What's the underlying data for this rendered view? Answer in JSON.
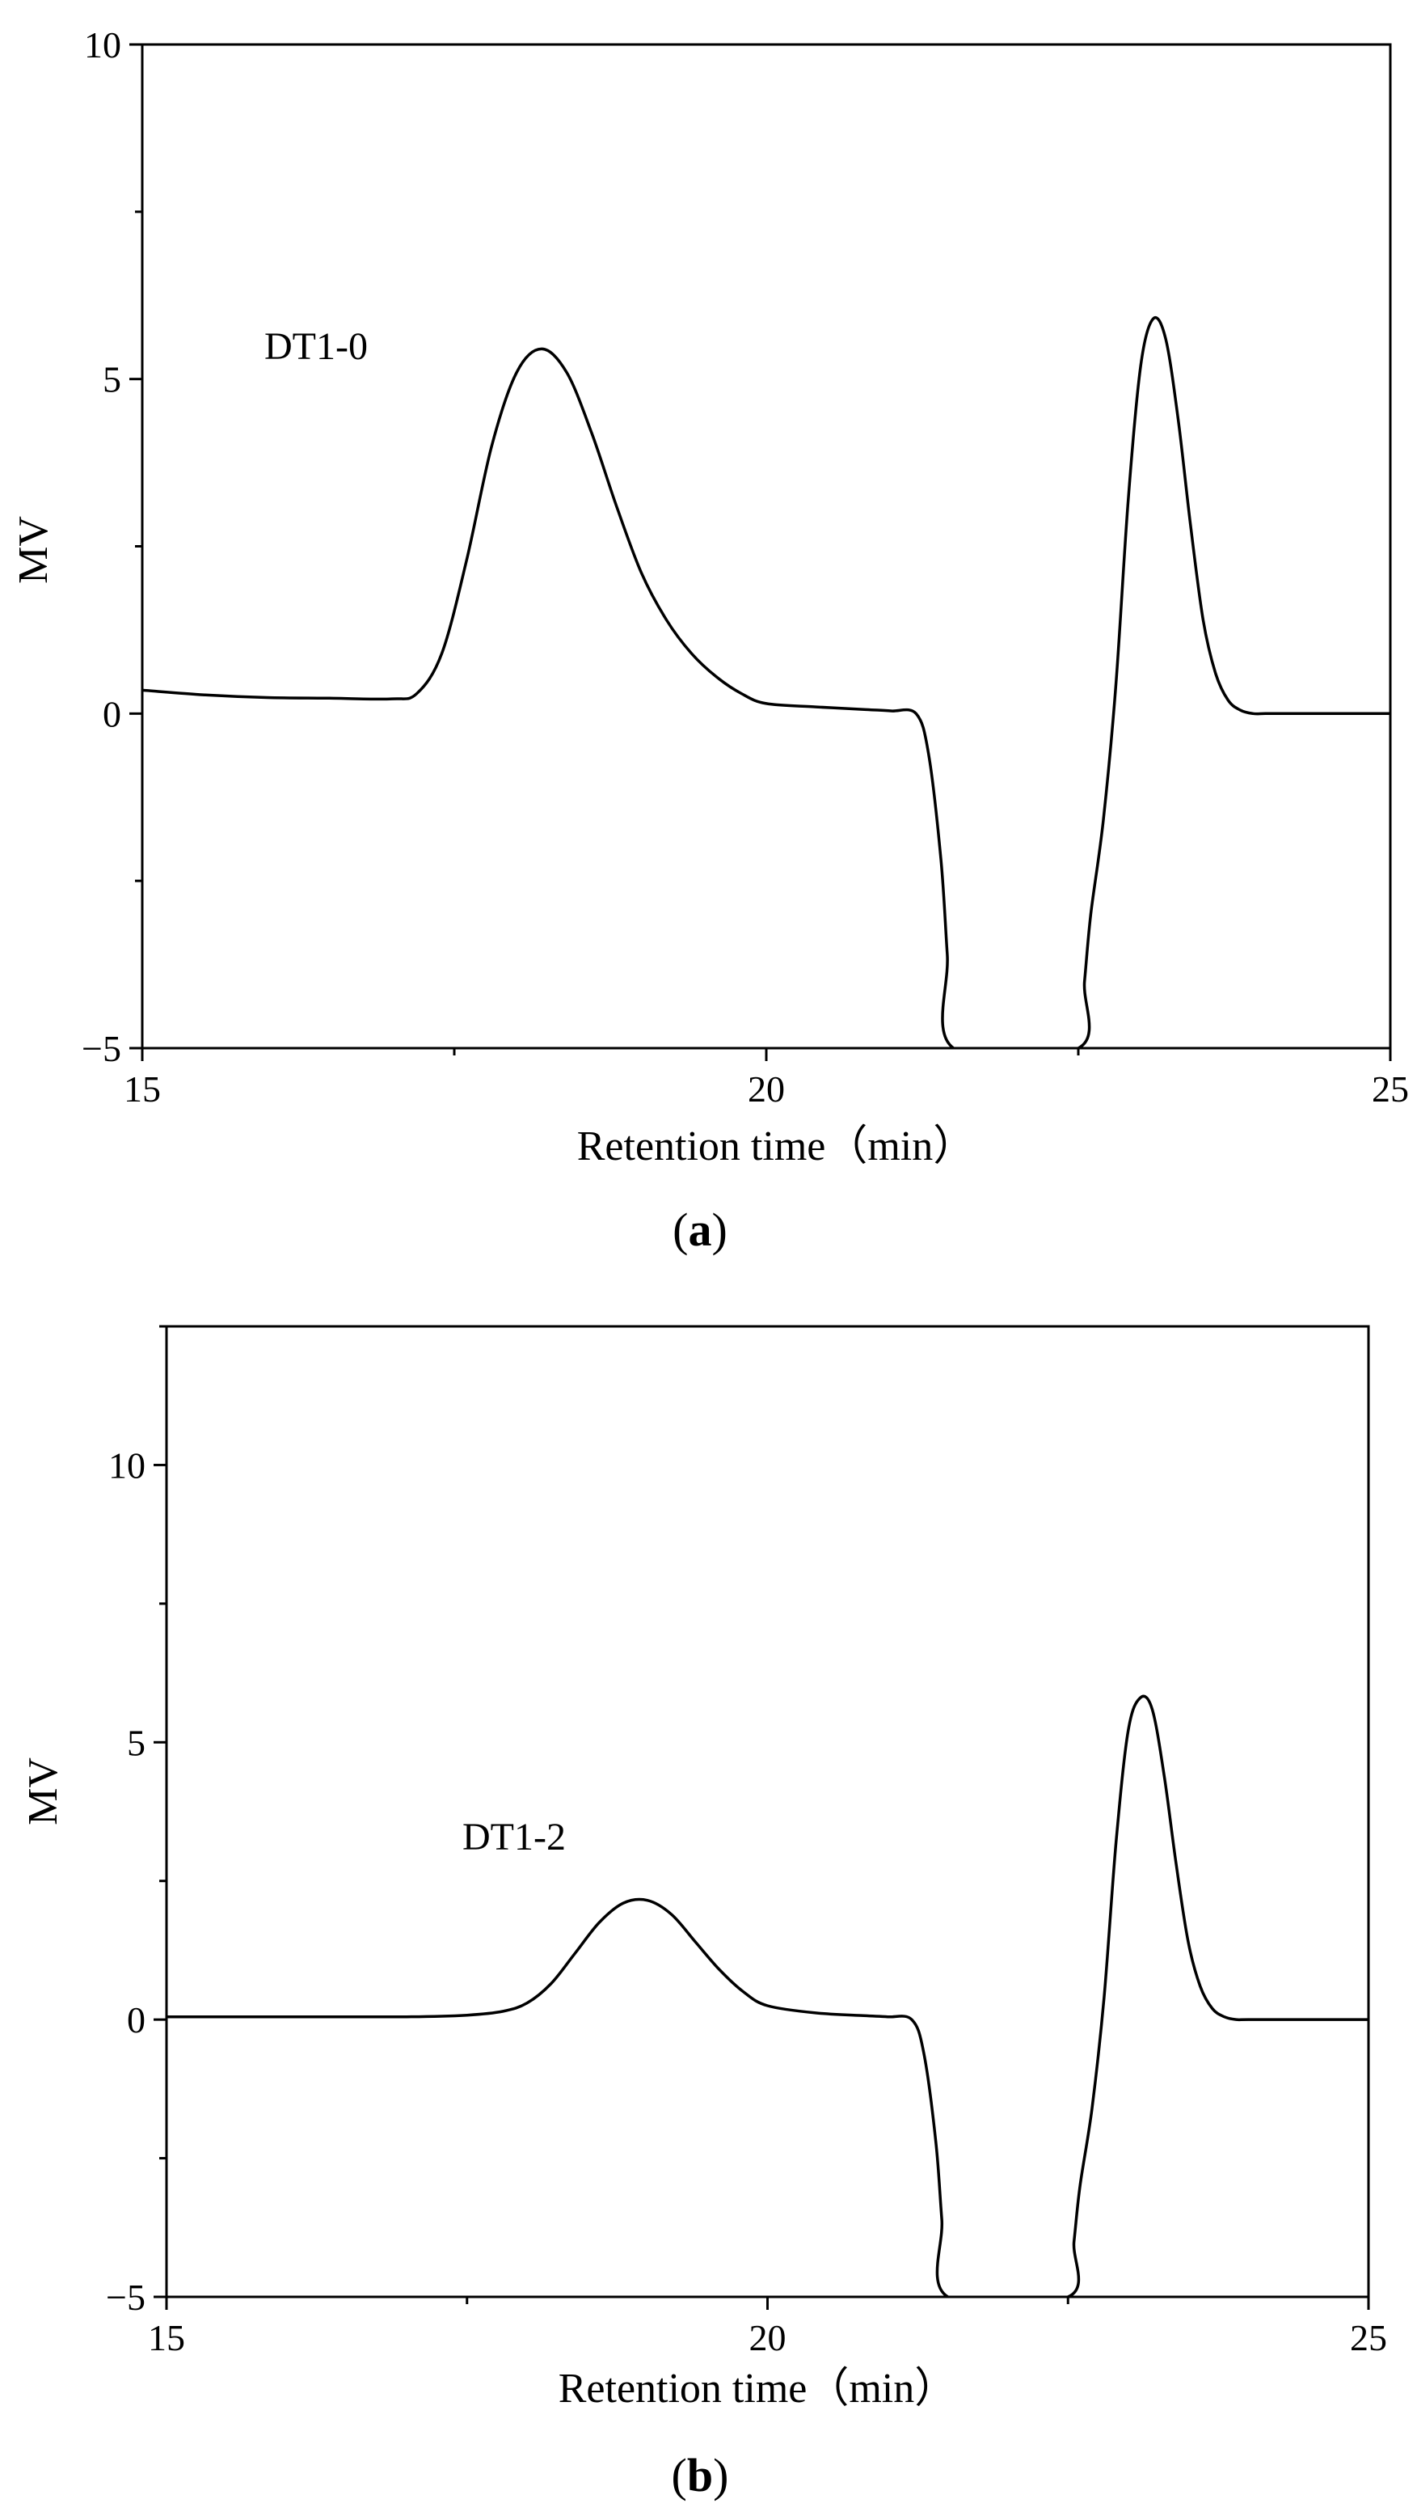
{
  "chart_data": [
    {
      "type": "line",
      "panel_label": "a",
      "annotation": "DT1-0",
      "xlabel": "Retention time（min）",
      "ylabel": "MV",
      "xlim": [
        15,
        25
      ],
      "ylim": [
        -5,
        10
      ],
      "x_ticks": [
        15,
        20,
        25
      ],
      "y_ticks": [
        -5,
        0,
        5,
        10
      ],
      "y_tick_labels": [
        "−5",
        "0",
        "5",
        "10"
      ],
      "series": [
        {
          "x": [
            15.0,
            15.5,
            16.0,
            16.5,
            17.0,
            17.2,
            17.4,
            17.6,
            17.8,
            18.0,
            18.2,
            18.4,
            18.6,
            18.8,
            19.0,
            19.2,
            19.4,
            19.6,
            19.8,
            20.0,
            20.4,
            20.8,
            21.0,
            21.2,
            21.3,
            21.4,
            21.45,
            21.5,
            22.5,
            22.55,
            22.6,
            22.7,
            22.8,
            22.9,
            23.0,
            23.1,
            23.2,
            23.3,
            23.4,
            23.5,
            23.6,
            23.7,
            23.8,
            23.9,
            24.0,
            24.2,
            24.5,
            25.0
          ],
          "y": [
            0.35,
            0.28,
            0.24,
            0.23,
            0.22,
            0.3,
            0.9,
            2.3,
            4.0,
            5.1,
            5.45,
            5.1,
            4.2,
            3.1,
            2.1,
            1.4,
            0.9,
            0.55,
            0.3,
            0.15,
            0.1,
            0.06,
            0.04,
            0.0,
            -0.6,
            -2.2,
            -3.6,
            -5.0,
            -5.0,
            -4.0,
            -3.0,
            -1.6,
            0.4,
            3.2,
            5.2,
            5.9,
            5.6,
            4.4,
            2.8,
            1.4,
            0.6,
            0.2,
            0.05,
            0.0,
            0.0,
            0.0,
            0.0,
            0.0
          ]
        }
      ]
    },
    {
      "type": "line",
      "panel_label": "b",
      "annotation": "DT1-2",
      "xlabel": "Retention time（min）",
      "ylabel": "MV",
      "xlim": [
        15,
        25
      ],
      "ylim": [
        -5,
        12.5
      ],
      "x_ticks": [
        15,
        20,
        25
      ],
      "y_ticks": [
        -5,
        0,
        5,
        10
      ],
      "y_tick_labels": [
        "−5",
        "0",
        "5",
        "10"
      ],
      "series": [
        {
          "x": [
            15.0,
            16.0,
            17.0,
            17.5,
            17.8,
            18.0,
            18.2,
            18.4,
            18.6,
            18.8,
            19.0,
            19.2,
            19.4,
            19.6,
            19.8,
            20.0,
            20.4,
            20.8,
            21.0,
            21.2,
            21.3,
            21.4,
            21.45,
            21.5,
            22.5,
            22.55,
            22.6,
            22.7,
            22.8,
            22.9,
            23.0,
            23.1,
            23.2,
            23.3,
            23.4,
            23.5,
            23.6,
            23.7,
            23.8,
            23.9,
            24.0,
            24.5,
            25.0
          ],
          "y": [
            0.05,
            0.05,
            0.05,
            0.08,
            0.15,
            0.3,
            0.65,
            1.2,
            1.75,
            2.1,
            2.15,
            1.9,
            1.4,
            0.9,
            0.5,
            0.25,
            0.12,
            0.07,
            0.05,
            0.0,
            -0.6,
            -2.2,
            -3.6,
            -5.0,
            -5.0,
            -4.0,
            -3.0,
            -1.6,
            0.4,
            3.2,
            5.2,
            5.8,
            5.6,
            4.4,
            2.8,
            1.4,
            0.6,
            0.2,
            0.05,
            0.0,
            0.0,
            0.0,
            0.0
          ]
        }
      ]
    }
  ]
}
